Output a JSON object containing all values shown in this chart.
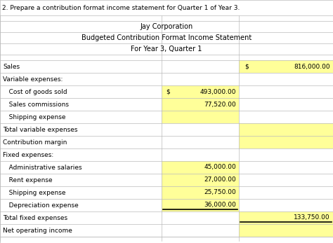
{
  "title1": "Jay Corporation",
  "title2": "Budgeted Contribution Format Income Statement",
  "title3": "For Year 3, Quarter 1",
  "header_question": "2. Prepare a contribution format income statement for Quarter 1 of Year 3.",
  "rows": [
    {
      "label": "Sales",
      "col1": "",
      "col1_dollar": "",
      "col2_val": "816,000.00",
      "col2_dollar": "$",
      "col2_yellow": true,
      "col1_yellow": false,
      "underline_col1": false,
      "underline_col2": false
    },
    {
      "label": "Variable expenses:",
      "col1": "",
      "col1_dollar": "",
      "col2_val": "",
      "col2_dollar": "",
      "col2_yellow": false,
      "col1_yellow": false,
      "underline_col1": false,
      "underline_col2": false
    },
    {
      "label": "   Cost of goods sold",
      "col1": "493,000.00",
      "col1_dollar": "$",
      "col2_val": "",
      "col2_dollar": "",
      "col2_yellow": false,
      "col1_yellow": true,
      "underline_col1": false,
      "underline_col2": false
    },
    {
      "label": "   Sales commissions",
      "col1": "77,520.00",
      "col1_dollar": "",
      "col2_val": "",
      "col2_dollar": "",
      "col2_yellow": false,
      "col1_yellow": true,
      "underline_col1": false,
      "underline_col2": false
    },
    {
      "label": "   Shipping expense",
      "col1": "",
      "col1_dollar": "",
      "col2_val": "",
      "col2_dollar": "",
      "col2_yellow": false,
      "col1_yellow": true,
      "underline_col1": false,
      "underline_col2": false
    },
    {
      "label": "Total variable expenses",
      "col1": "",
      "col1_dollar": "",
      "col2_val": "",
      "col2_dollar": "",
      "col2_yellow": true,
      "col1_yellow": false,
      "underline_col1": false,
      "underline_col2": false
    },
    {
      "label": "Contribution margin",
      "col1": "",
      "col1_dollar": "",
      "col2_val": "",
      "col2_dollar": "",
      "col2_yellow": true,
      "col1_yellow": false,
      "underline_col1": false,
      "underline_col2": false
    },
    {
      "label": "Fixed expenses:",
      "col1": "",
      "col1_dollar": "",
      "col2_val": "",
      "col2_dollar": "",
      "col2_yellow": false,
      "col1_yellow": false,
      "underline_col1": false,
      "underline_col2": false
    },
    {
      "label": "   Administrative salaries",
      "col1": "45,000.00",
      "col1_dollar": "",
      "col2_val": "",
      "col2_dollar": "",
      "col2_yellow": false,
      "col1_yellow": true,
      "underline_col1": false,
      "underline_col2": false
    },
    {
      "label": "   Rent expense",
      "col1": "27,000.00",
      "col1_dollar": "",
      "col2_val": "",
      "col2_dollar": "",
      "col2_yellow": false,
      "col1_yellow": true,
      "underline_col1": false,
      "underline_col2": false
    },
    {
      "label": "   Shipping expense",
      "col1": "25,750.00",
      "col1_dollar": "",
      "col2_val": "",
      "col2_dollar": "",
      "col2_yellow": false,
      "col1_yellow": true,
      "underline_col1": false,
      "underline_col2": false
    },
    {
      "label": "   Depreciation expense",
      "col1": "36,000.00",
      "col1_dollar": "",
      "col2_val": "",
      "col2_dollar": "",
      "col2_yellow": false,
      "col1_yellow": true,
      "underline_col1": true,
      "underline_col2": false
    },
    {
      "label": "Total fixed expenses",
      "col1": "",
      "col1_dollar": "",
      "col2_val": "133,750.00",
      "col2_dollar": "",
      "col2_yellow": true,
      "col1_yellow": false,
      "underline_col1": false,
      "underline_col2": true
    },
    {
      "label": "Net operating income",
      "col1": "",
      "col1_dollar": "",
      "col2_val": "",
      "col2_dollar": "",
      "col2_yellow": true,
      "col1_yellow": false,
      "underline_col1": false,
      "underline_col2": false
    }
  ],
  "yellow_color": "#FFFF99",
  "bg_color": "#FFFFFF",
  "grid_color": "#BBBBBB",
  "text_color": "#000000",
  "font_size": 6.5,
  "title_font_size": 7.0,
  "question_font_size": 6.5
}
